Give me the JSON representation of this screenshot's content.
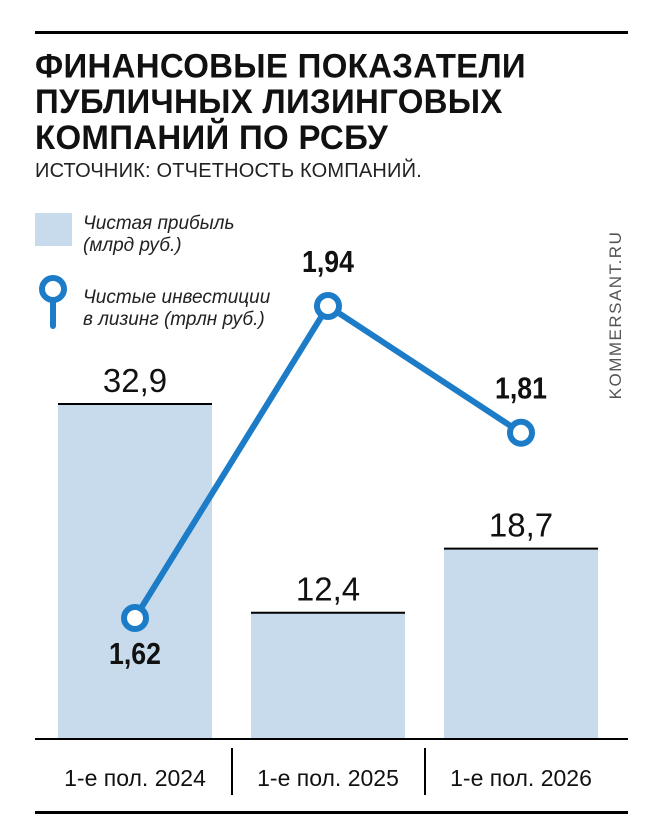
{
  "title": "ФИНАНСОВЫЕ ПОКАЗАТЕЛИ\nПУБЛИЧНЫХ ЛИЗИНГОВЫХ\nКОМПАНИЙ ПО РСБУ",
  "source": "ИСТОЧНИК: ОТЧЕТНОСТЬ КОМПАНИЙ.",
  "watermark": "KOMMERSANT.RU",
  "colors": {
    "bar": "#c8dbec",
    "line": "#1c7cc7",
    "axis": "#000000"
  },
  "chart_data": {
    "type": "bar",
    "categories": [
      "1-е пол. 2024",
      "1-е пол. 2025",
      "1-е пол. 2026"
    ],
    "series": [
      {
        "name": "Чистая прибыль (млрд руб.)",
        "type": "bar",
        "values": [
          32.9,
          12.4,
          18.7
        ],
        "labels": [
          "32,9",
          "12,4",
          "18,7"
        ]
      },
      {
        "name": "Чистые инвестиции в лизинг (трлн руб.)",
        "type": "line",
        "values": [
          1.62,
          1.94,
          1.81
        ],
        "labels": [
          "1,62",
          "1,94",
          "1,81"
        ]
      }
    ],
    "legend": [
      {
        "line1": "Чистая прибыль",
        "line2": "(млрд руб.)",
        "marker": "bar"
      },
      {
        "line1": "Чистые инвестиции",
        "line2": "в лизинг (трлн руб.)",
        "marker": "line"
      }
    ],
    "legend_position": "top-left"
  }
}
